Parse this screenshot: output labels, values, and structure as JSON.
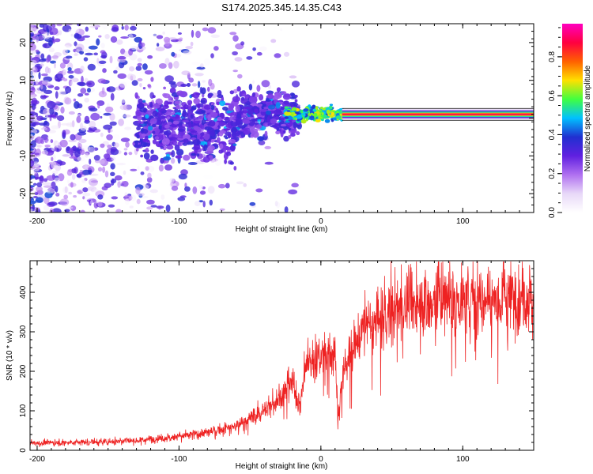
{
  "title": "S174.2025.345.14.35.C43",
  "chart_data": [
    {
      "type": "heatmap",
      "title": "S174.2025.345.14.35.C43",
      "xlabel": "Height of straight line (km)",
      "ylabel": "Frequency (Hz)",
      "xlim": [
        -205,
        150
      ],
      "ylim": [
        -25,
        25
      ],
      "xticks": [
        "-200",
        "-100",
        "0",
        "100"
      ],
      "xtick_values": [
        -200,
        -100,
        0,
        100
      ],
      "yticks": [
        "-20",
        "-10",
        "0",
        "10",
        "20"
      ],
      "ytick_values": [
        -20,
        -10,
        0,
        10,
        20
      ],
      "colorbar": {
        "label": "Normalized spectral amplitude",
        "ticks": [
          "0.0",
          "0.2",
          "0.4",
          "0.6",
          "0.8"
        ],
        "tick_values": [
          0.0,
          0.2,
          0.4,
          0.6,
          0.8
        ],
        "range": [
          0,
          0.97
        ]
      },
      "colors": {
        "colormap": [
          "#ffffff",
          "#e8d8f8",
          "#b070f0",
          "#6020e0",
          "#2030d0",
          "#00c0ff",
          "#40ff40",
          "#ffe000",
          "#ff6000",
          "#ff0040",
          "#ff00c0"
        ]
      },
      "features": [
        {
          "name": "scattered noise",
          "x_range": [
            -205,
            -20
          ],
          "freq_range": [
            -25,
            25
          ],
          "amplitude": 0.15
        },
        {
          "name": "central band",
          "x_range": [
            -130,
            -20
          ],
          "freq_range": [
            -13,
            8
          ],
          "amplitude": 0.3
        },
        {
          "name": "signal line",
          "x_range": [
            15,
            150
          ],
          "freq": 1.0,
          "amplitude": 0.92
        }
      ]
    },
    {
      "type": "line",
      "xlabel": "Height of straight line (km)",
      "ylabel": "SNR (10 * v/v)",
      "xlim": [
        -205,
        150
      ],
      "ylim": [
        0,
        480
      ],
      "xticks": [
        "-200",
        "-100",
        "0",
        "100"
      ],
      "xtick_values": [
        -200,
        -100,
        0,
        100
      ],
      "yticks": [
        "0",
        "100",
        "200",
        "300",
        "400"
      ],
      "ytick_values": [
        0,
        100,
        200,
        300,
        400
      ],
      "series": [
        {
          "name": "SNR",
          "color": "#ee2222",
          "trend_x": [
            -205,
            -150,
            -120,
            -100,
            -80,
            -60,
            -40,
            -30,
            -20,
            -15,
            -10,
            0,
            10,
            12,
            14,
            20,
            30,
            50,
            70,
            100,
            130,
            150
          ],
          "trend_y": [
            18,
            22,
            28,
            35,
            45,
            62,
            100,
            130,
            170,
            110,
            220,
            240,
            250,
            70,
            160,
            250,
            300,
            350,
            370,
            380,
            385,
            390
          ]
        }
      ]
    }
  ]
}
